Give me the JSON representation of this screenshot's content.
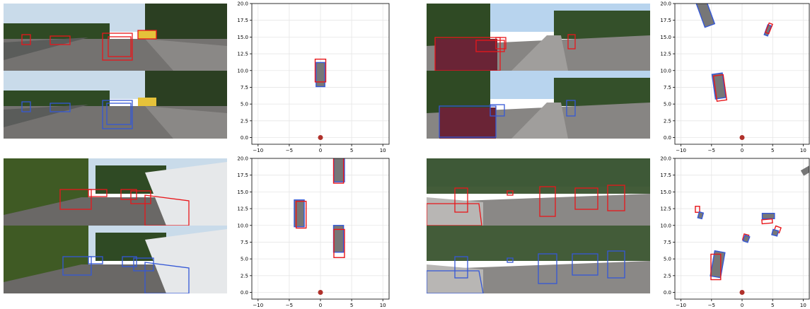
{
  "palette": {
    "pred": "#e8171b",
    "gt": "#3558d6",
    "fill": "#777777",
    "ego": "#b0302a",
    "sky": "#c9dbea",
    "tree": "#2f4a24",
    "road": "#747270",
    "grass": "#4e6a2e"
  },
  "axes": {
    "x_ticks": [
      "−10",
      "−5",
      "0",
      "5",
      "10"
    ],
    "y_ticks": [
      "0.0",
      "2.5",
      "5.0",
      "7.5",
      "10.0",
      "12.5",
      "15.0",
      "17.5",
      "20.0"
    ]
  },
  "chart_data": [
    {
      "type": "scatter",
      "xlim": [
        -11,
        11
      ],
      "ylim": [
        -1.0,
        20.0
      ],
      "grid": true,
      "ego": [
        0,
        0
      ],
      "boxes": [
        {
          "cx": 0.0,
          "cy": 9.4,
          "w": 1.4,
          "h": 3.6,
          "angle": 0,
          "kind": "gt"
        },
        {
          "cx": 0.0,
          "cy": 10.0,
          "w": 1.7,
          "h": 3.4,
          "angle": 0,
          "kind": "pred"
        }
      ]
    },
    {
      "type": "scatter",
      "xlim": [
        -11,
        11
      ],
      "ylim": [
        -1.0,
        20.0
      ],
      "grid": true,
      "ego": [
        0,
        0
      ],
      "boxes": [
        {
          "cx": -6.0,
          "cy": 18.5,
          "w": 1.7,
          "h": 3.8,
          "angle": -20,
          "kind": "gt"
        },
        {
          "cx": 4.2,
          "cy": 16.0,
          "w": 0.6,
          "h": 1.6,
          "angle": 20,
          "kind": "gt"
        },
        {
          "cx": 4.4,
          "cy": 16.3,
          "w": 0.6,
          "h": 1.5,
          "angle": 22,
          "kind": "pred"
        },
        {
          "cx": -3.8,
          "cy": 7.7,
          "w": 1.7,
          "h": 3.7,
          "angle": -8,
          "kind": "gt"
        },
        {
          "cx": -3.6,
          "cy": 7.4,
          "w": 1.6,
          "h": 3.8,
          "angle": -8,
          "kind": "pred"
        }
      ]
    },
    {
      "type": "scatter",
      "xlim": [
        -11,
        11
      ],
      "ylim": [
        -1.0,
        20.0
      ],
      "grid": true,
      "ego": [
        0,
        0
      ],
      "boxes": [
        {
          "cx": 3.0,
          "cy": 18.5,
          "w": 1.7,
          "h": 4.0,
          "angle": 0,
          "kind": "gt"
        },
        {
          "cx": 2.9,
          "cy": 18.3,
          "w": 1.6,
          "h": 4.0,
          "angle": 0,
          "kind": "pred"
        },
        {
          "cx": -3.4,
          "cy": 11.8,
          "w": 1.6,
          "h": 4.0,
          "angle": 0,
          "kind": "gt"
        },
        {
          "cx": -3.1,
          "cy": 11.6,
          "w": 1.6,
          "h": 4.0,
          "angle": 0,
          "kind": "pred"
        },
        {
          "cx": 2.9,
          "cy": 8.0,
          "w": 1.6,
          "h": 4.0,
          "angle": 0,
          "kind": "gt"
        },
        {
          "cx": 3.0,
          "cy": 7.3,
          "w": 1.7,
          "h": 4.2,
          "angle": 0,
          "kind": "pred"
        }
      ]
    },
    {
      "type": "scatter",
      "xlim": [
        -11,
        11
      ],
      "ylim": [
        -1.0,
        20.0
      ],
      "grid": true,
      "ego": [
        0,
        0
      ],
      "boxes": [
        {
          "cx": 10.6,
          "cy": 18.2,
          "w": 1.0,
          "h": 1.6,
          "angle": 60,
          "kind": "fill"
        },
        {
          "cx": -7.3,
          "cy": 12.4,
          "w": 0.7,
          "h": 0.9,
          "angle": 0,
          "kind": "pred"
        },
        {
          "cx": -6.8,
          "cy": 11.5,
          "w": 0.7,
          "h": 0.9,
          "angle": 15,
          "kind": "gt"
        },
        {
          "cx": 4.3,
          "cy": 11.4,
          "w": 2.0,
          "h": 0.8,
          "angle": 0,
          "kind": "gt"
        },
        {
          "cx": 4.1,
          "cy": 10.6,
          "w": 1.7,
          "h": 0.6,
          "angle": -5,
          "kind": "pred"
        },
        {
          "cx": 5.8,
          "cy": 9.4,
          "w": 0.9,
          "h": 0.8,
          "angle": 20,
          "kind": "pred"
        },
        {
          "cx": 5.4,
          "cy": 8.9,
          "w": 0.9,
          "h": 0.8,
          "angle": 15,
          "kind": "gt"
        },
        {
          "cx": 0.6,
          "cy": 8.2,
          "w": 0.8,
          "h": 0.9,
          "angle": 15,
          "kind": "pred"
        },
        {
          "cx": 0.7,
          "cy": 8.0,
          "w": 0.8,
          "h": 0.9,
          "angle": 20,
          "kind": "gt"
        },
        {
          "cx": -4.0,
          "cy": 4.2,
          "w": 1.7,
          "h": 3.8,
          "angle": 10,
          "kind": "gt"
        },
        {
          "cx": -4.3,
          "cy": 3.8,
          "w": 1.6,
          "h": 3.8,
          "angle": 0,
          "kind": "pred"
        }
      ]
    }
  ]
}
